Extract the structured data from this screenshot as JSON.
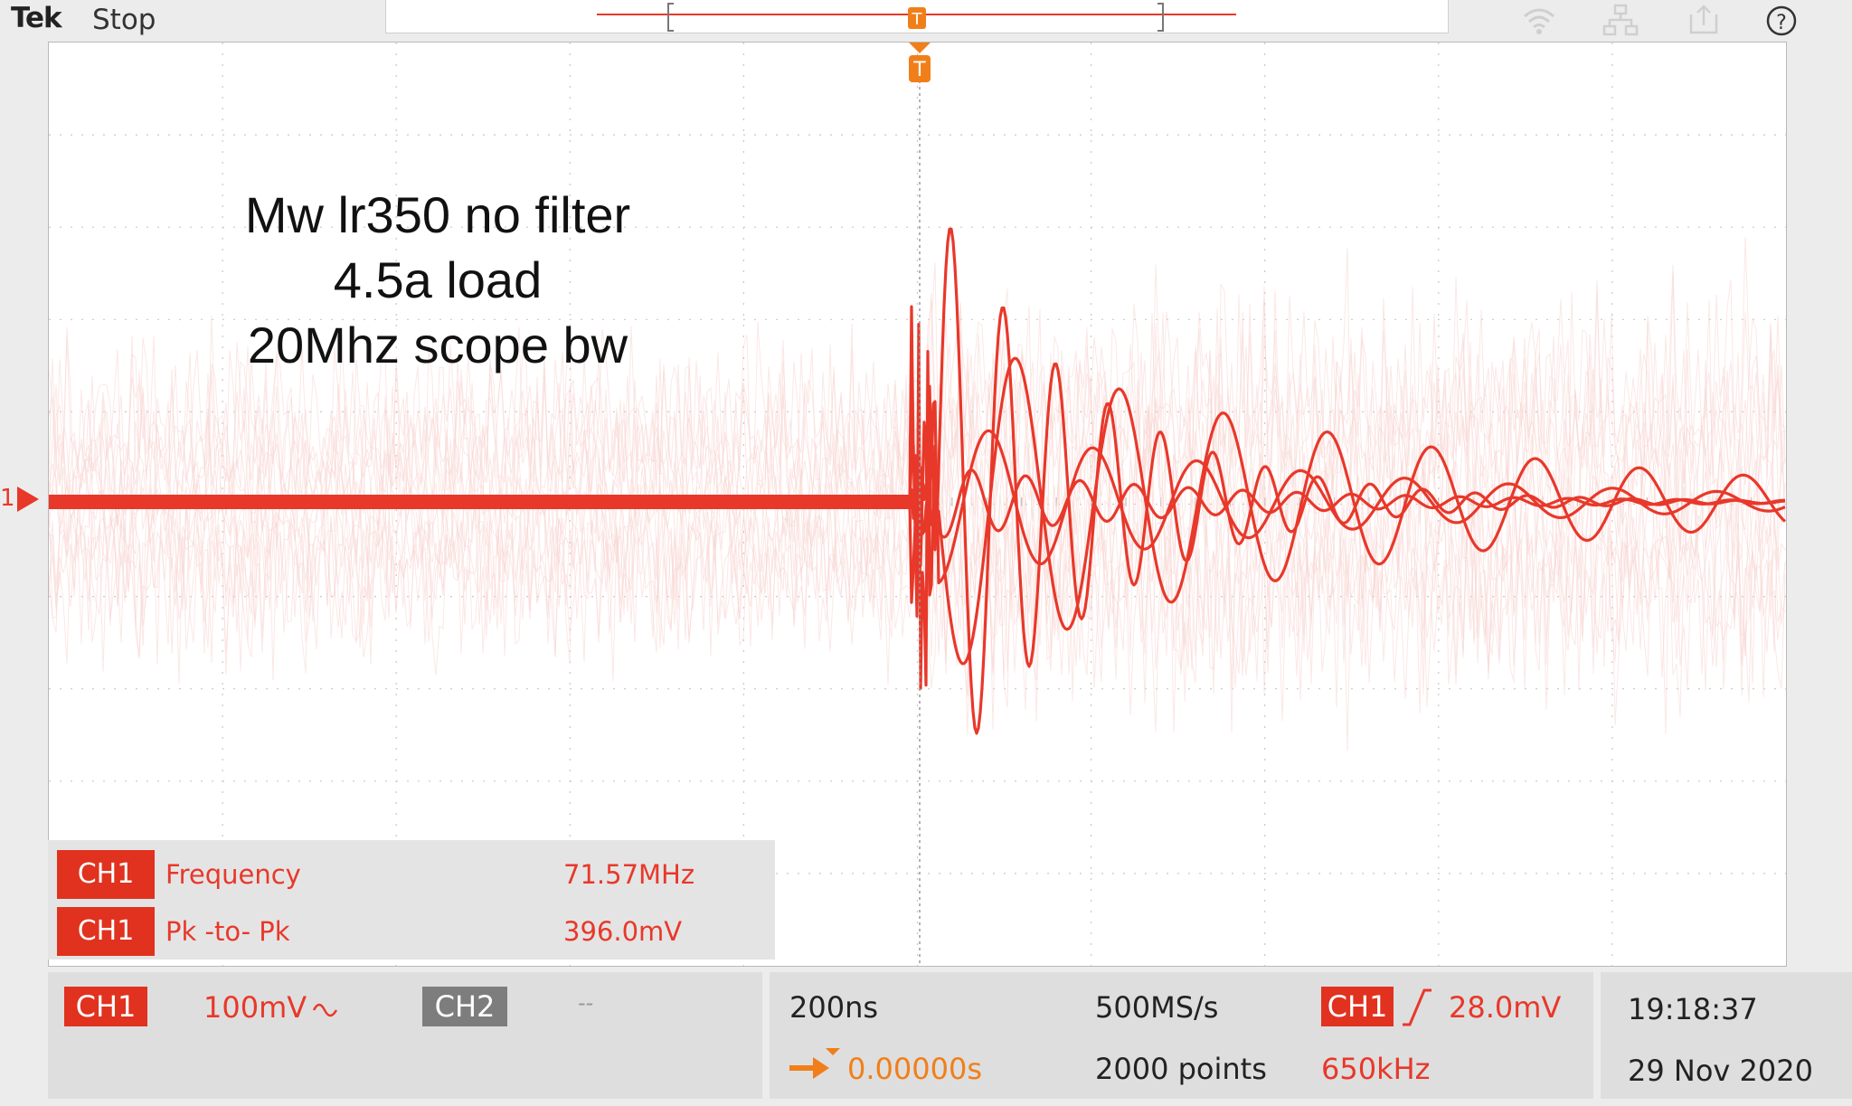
{
  "header": {
    "brand": "Tek",
    "run_state": "Stop",
    "icons": [
      "wifi-icon",
      "network-icon",
      "export-icon",
      "help-icon"
    ]
  },
  "annotation": {
    "lines": [
      "Mw lr350 no filter",
      "4.5a load",
      "20Mhz scope bw"
    ]
  },
  "trigger_marker_label": "T",
  "channel_marker": "1",
  "measurements": [
    {
      "channel": "CH1",
      "name": "Frequency",
      "value": "71.57MHz"
    },
    {
      "channel": "CH1",
      "name": "Pk -to- Pk",
      "value": "396.0mV"
    }
  ],
  "channels": {
    "ch1_label": "CH1",
    "ch1_scale": "100mV",
    "ch1_coupling_icon": "ac-coupling-icon",
    "ch2_label": "CH2",
    "ch2_scale": "--"
  },
  "horizontal": {
    "time_per_div": "200ns",
    "sample_rate": "500MS/s",
    "position": "0.00000s",
    "record_length": "2000 points"
  },
  "trigger": {
    "source": "CH1",
    "slope_icon": "rising-edge-icon",
    "level": "28.0mV",
    "frequency": "650kHz"
  },
  "clock": {
    "time": "19:18:37",
    "date": "29 Nov 2020"
  },
  "colors": {
    "trace": "#e8382a",
    "persistence": "#f8d6d2",
    "badge": "#e0321f",
    "trigger": "#f07f1a"
  }
}
